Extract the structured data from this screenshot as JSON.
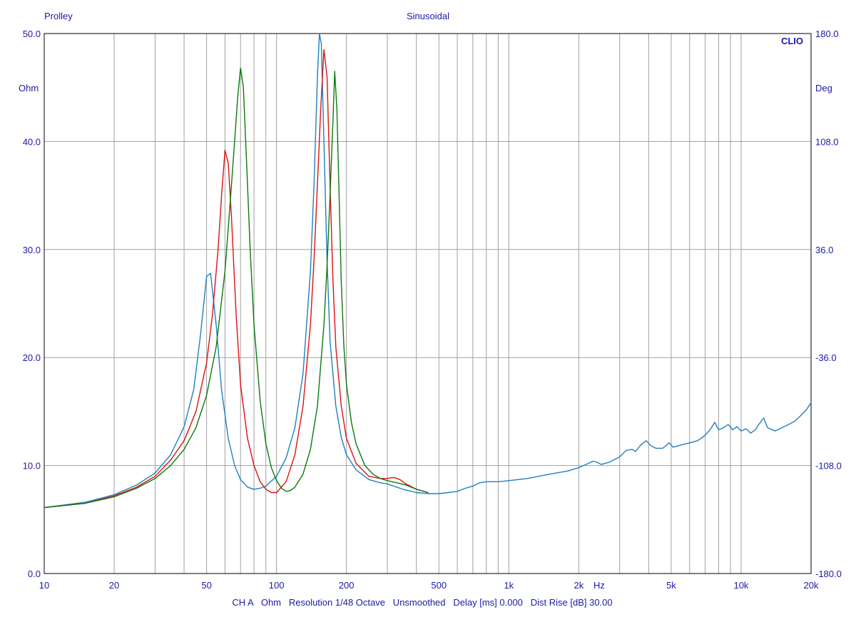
{
  "header": {
    "left_title": "Prolley",
    "center_title": "Sinusoidal",
    "brand": "CLIO"
  },
  "footer": {
    "info": "CH A   Ohm   Resolution 1/48 Octave   Unsmoothed   Delay [ms] 0.000   Dist Rise [dB] 30.00"
  },
  "colors": {
    "axis_text": "#1a1aa6",
    "grid": "#a0a0a0",
    "frame": "#000000",
    "series": [
      "#1f7fc4",
      "#e01010",
      "#0a7a0a"
    ]
  },
  "chart_data": {
    "type": "line",
    "x_scale": "log",
    "xlim": [
      10,
      20000
    ],
    "ylim": [
      0,
      50
    ],
    "ylim_right": [
      -180,
      180
    ],
    "ylabel": "Ohm",
    "ylabel_right": "Deg",
    "xlabel": "Hz",
    "grid": true,
    "x_grid_values": [
      20,
      30,
      40,
      50,
      60,
      70,
      80,
      90,
      100,
      200,
      300,
      400,
      500,
      600,
      700,
      800,
      900,
      1000,
      2000,
      3000,
      4000,
      5000,
      6000,
      7000,
      8000,
      9000,
      10000,
      20000
    ],
    "y_grid_values": [
      10,
      20,
      30,
      40
    ],
    "x_ticks": [
      {
        "value": 10,
        "label": "10"
      },
      {
        "value": 20,
        "label": "20"
      },
      {
        "value": 50,
        "label": "50"
      },
      {
        "value": 100,
        "label": "100"
      },
      {
        "value": 200,
        "label": "200"
      },
      {
        "value": 500,
        "label": "500"
      },
      {
        "value": 1000,
        "label": "1k"
      },
      {
        "value": 2000,
        "label": "2k"
      },
      {
        "value": 5000,
        "label": "5k"
      },
      {
        "value": 10000,
        "label": "10k"
      },
      {
        "value": 20000,
        "label": "20k"
      }
    ],
    "y_ticks": [
      {
        "value": 0,
        "label": "0.0"
      },
      {
        "value": 10,
        "label": "10.0"
      },
      {
        "value": 20,
        "label": "20.0"
      },
      {
        "value": 30,
        "label": "30.0"
      },
      {
        "value": 40,
        "label": "40.0"
      },
      {
        "value": 50,
        "label": "50.0"
      }
    ],
    "y_ticks_right": [
      {
        "value": -180,
        "label": "-180.0"
      },
      {
        "value": -108,
        "label": "-108.0"
      },
      {
        "value": -36,
        "label": "-36.0"
      },
      {
        "value": 36,
        "label": "36.0"
      },
      {
        "value": 108,
        "label": "108.0"
      },
      {
        "value": 180,
        "label": "180.0"
      }
    ],
    "series": [
      {
        "color": "#1f7fc4",
        "x": [
          10,
          15,
          20,
          25,
          30,
          35,
          40,
          44,
          47,
          50,
          52,
          55,
          58,
          62,
          66,
          70,
          75,
          80,
          85,
          90,
          100,
          110,
          120,
          130,
          140,
          145,
          150,
          153,
          156,
          160,
          165,
          170,
          180,
          190,
          200,
          220,
          250,
          280,
          300,
          350,
          400,
          450,
          500,
          550,
          600,
          650,
          700,
          750,
          800,
          900,
          1000,
          1200,
          1500,
          1800,
          2000,
          2200,
          2300,
          2400,
          2500,
          2700,
          3000,
          3200,
          3400,
          3500,
          3700,
          3900,
          4100,
          4300,
          4600,
          4900,
          5100,
          5500,
          6000,
          6500,
          7000,
          7400,
          7700,
          8000,
          8400,
          8800,
          9200,
          9600,
          10000,
          10500,
          11000,
          11500,
          12000,
          12500,
          13000,
          14000,
          15000,
          16000,
          17000,
          18000,
          19000,
          20000
        ],
        "y": [
          6.1,
          6.6,
          7.3,
          8.2,
          9.3,
          11.0,
          13.6,
          17.0,
          22.0,
          27.5,
          27.8,
          23.0,
          17.0,
          12.5,
          10.0,
          8.7,
          8.0,
          7.8,
          7.9,
          8.1,
          9.0,
          10.7,
          13.5,
          18.5,
          28.0,
          36.0,
          46.0,
          50.0,
          49.0,
          40.0,
          29.0,
          21.5,
          15.5,
          12.6,
          11.0,
          9.6,
          8.7,
          8.4,
          8.3,
          7.8,
          7.5,
          7.4,
          7.4,
          7.5,
          7.6,
          7.9,
          8.1,
          8.4,
          8.5,
          8.5,
          8.6,
          8.8,
          9.2,
          9.5,
          9.8,
          10.2,
          10.4,
          10.3,
          10.1,
          10.3,
          10.8,
          11.4,
          11.5,
          11.3,
          11.9,
          12.3,
          11.8,
          11.6,
          11.6,
          12.1,
          11.7,
          11.9,
          12.1,
          12.3,
          12.8,
          13.4,
          14.0,
          13.3,
          13.5,
          13.8,
          13.3,
          13.6,
          13.2,
          13.4,
          13.0,
          13.3,
          13.9,
          14.4,
          13.5,
          13.2,
          13.5,
          13.8,
          14.1,
          14.6,
          15.1,
          15.8
        ]
      },
      {
        "color": "#e01010",
        "x": [
          10,
          15,
          20,
          25,
          30,
          35,
          40,
          45,
          50,
          53,
          56,
          58,
          60,
          62,
          64,
          67,
          70,
          75,
          80,
          85,
          90,
          95,
          100,
          110,
          120,
          130,
          140,
          145,
          150,
          155,
          160,
          165,
          170,
          175,
          180,
          190,
          200,
          220,
          250,
          280,
          300,
          320,
          340,
          360,
          400,
          450
        ],
        "y": [
          6.1,
          6.5,
          7.2,
          8.0,
          9.0,
          10.5,
          12.3,
          15.0,
          19.5,
          24.0,
          30.0,
          35.0,
          39.2,
          38.0,
          33.0,
          24.0,
          17.5,
          12.5,
          10.0,
          8.5,
          7.8,
          7.5,
          7.5,
          8.5,
          11.0,
          15.5,
          23.0,
          29.0,
          36.0,
          43.0,
          48.5,
          46.0,
          36.0,
          27.0,
          21.0,
          15.5,
          12.5,
          10.2,
          9.0,
          8.8,
          8.8,
          8.9,
          8.7,
          8.3,
          7.8,
          7.5
        ]
      },
      {
        "color": "#0a7a0a",
        "x": [
          10,
          15,
          20,
          25,
          30,
          35,
          40,
          45,
          50,
          55,
          60,
          63,
          66,
          68,
          70,
          72,
          74,
          77,
          80,
          85,
          90,
          95,
          100,
          105,
          110,
          115,
          120,
          130,
          140,
          150,
          160,
          165,
          170,
          175,
          178,
          182,
          186,
          190,
          195,
          200,
          210,
          220,
          240,
          260,
          280,
          300,
          330,
          360,
          400,
          450
        ],
        "y": [
          6.1,
          6.5,
          7.1,
          7.9,
          8.8,
          10.0,
          11.5,
          13.5,
          16.5,
          21.0,
          28.0,
          34.0,
          40.0,
          44.0,
          46.8,
          45.0,
          39.0,
          30.0,
          23.0,
          16.0,
          12.0,
          9.8,
          8.6,
          7.9,
          7.6,
          7.7,
          8.0,
          9.2,
          11.5,
          15.5,
          23.0,
          28.5,
          35.0,
          42.0,
          46.5,
          43.0,
          35.0,
          27.0,
          21.0,
          17.5,
          14.0,
          12.0,
          10.0,
          9.2,
          8.8,
          8.6,
          8.4,
          8.2,
          7.8,
          7.5
        ]
      }
    ]
  }
}
